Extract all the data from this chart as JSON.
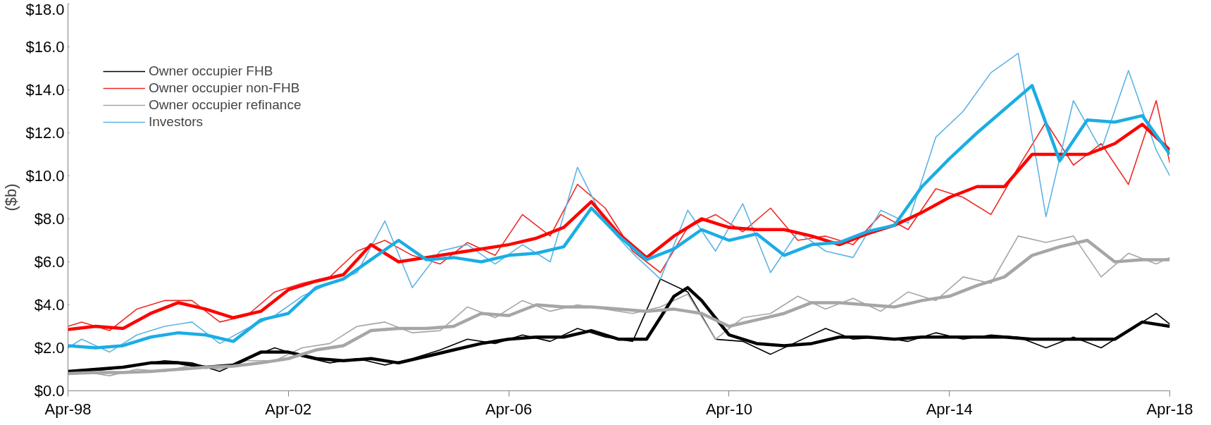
{
  "chart_data": {
    "type": "line",
    "ylabel": "($b)",
    "legend": "top left",
    "grid": false,
    "line_style": "solid",
    "marker": "none",
    "xlim": [
      "1998-04",
      "2018-04"
    ],
    "xticks": [
      {
        "value": "1998-04",
        "label": "Apr-98"
      },
      {
        "value": "2002-04",
        "label": "Apr-02"
      },
      {
        "value": "2006-04",
        "label": "Apr-06"
      },
      {
        "value": "2010-04",
        "label": "Apr-10"
      },
      {
        "value": "2014-04",
        "label": "Apr-14"
      },
      {
        "value": "2018-04",
        "label": "Apr-18"
      }
    ],
    "ylim": [
      0,
      18
    ],
    "yticks": [
      {
        "value": 0,
        "label": "$0.0"
      },
      {
        "value": 2,
        "label": "$2.0"
      },
      {
        "value": 4,
        "label": "$4.0"
      },
      {
        "value": 6,
        "label": "$6.0"
      },
      {
        "value": 8,
        "label": "$8.0"
      },
      {
        "value": 10,
        "label": "$10.0"
      },
      {
        "value": 12,
        "label": "$12.0"
      },
      {
        "value": 14,
        "label": "$14.0"
      },
      {
        "value": 16,
        "label": "$16.0"
      },
      {
        "value": 18,
        "label": "$18.0"
      }
    ],
    "x": [
      "1998-04",
      "1998-07",
      "1999-01",
      "1999-07",
      "2000-01",
      "2000-07",
      "2001-01",
      "2001-07",
      "2002-01",
      "2002-07",
      "2003-01",
      "2003-07",
      "2004-01",
      "2004-07",
      "2005-01",
      "2005-07",
      "2006-01",
      "2006-07",
      "2007-01",
      "2007-07",
      "2008-01",
      "2008-07",
      "2009-01",
      "2009-07",
      "2010-01",
      "2010-07",
      "2011-01",
      "2011-07",
      "2012-01",
      "2012-07",
      "2013-01",
      "2013-07",
      "2014-01",
      "2014-07",
      "2015-01",
      "2015-07",
      "2016-01",
      "2016-07",
      "2017-01",
      "2017-07",
      "2018-01",
      "2018-04"
    ],
    "series": [
      {
        "name": "Owner occupier FHB",
        "color": "#000000",
        "values": [
          0.9,
          0.9,
          1.0,
          1.2,
          1.4,
          1.3,
          0.9,
          1.5,
          2.0,
          1.6,
          1.3,
          1.5,
          1.2,
          1.5,
          1.9,
          2.4,
          2.2,
          2.6,
          2.3,
          2.9,
          2.5,
          2.3,
          5.2,
          4.6,
          2.4,
          2.3,
          1.7,
          2.3,
          2.9,
          2.4,
          2.5,
          2.3,
          2.7,
          2.4,
          2.6,
          2.5,
          2.0,
          2.5,
          2.0,
          2.8,
          3.6,
          3.1
        ]
      },
      {
        "name": "Owner occupier non-FHB",
        "color": "#ee2a24",
        "values": [
          3.0,
          3.2,
          2.8,
          3.8,
          4.2,
          4.2,
          3.2,
          3.5,
          4.6,
          5.0,
          5.3,
          6.5,
          7.0,
          6.3,
          5.9,
          6.9,
          6.3,
          8.2,
          7.2,
          9.6,
          8.5,
          6.5,
          5.5,
          7.6,
          8.2,
          7.4,
          8.5,
          7.0,
          7.2,
          6.8,
          8.2,
          7.5,
          9.4,
          9.0,
          8.2,
          10.4,
          12.5,
          10.5,
          11.5,
          9.6,
          13.5,
          10.6
        ]
      },
      {
        "name": "Owner occupier refinance",
        "color": "#a6a6a6",
        "values": [
          0.8,
          0.9,
          0.7,
          1.0,
          0.9,
          1.2,
          1.0,
          1.4,
          1.4,
          2.0,
          2.2,
          3.0,
          3.2,
          2.7,
          2.8,
          3.9,
          3.4,
          4.2,
          3.7,
          4.0,
          3.8,
          3.6,
          3.9,
          4.5,
          2.4,
          3.4,
          3.6,
          4.4,
          3.8,
          4.3,
          3.7,
          4.6,
          4.2,
          5.3,
          5.0,
          7.2,
          6.9,
          7.2,
          5.3,
          6.4,
          5.9,
          6.2
        ]
      },
      {
        "name": "Investors",
        "color": "#5eb3e6",
        "values": [
          2.0,
          2.4,
          1.8,
          2.6,
          3.0,
          3.2,
          2.2,
          2.9,
          3.5,
          4.4,
          5.0,
          5.5,
          7.9,
          4.8,
          6.5,
          6.8,
          5.9,
          6.8,
          6.0,
          10.4,
          7.8,
          6.4,
          5.2,
          8.4,
          6.5,
          8.7,
          5.5,
          7.4,
          6.5,
          6.2,
          8.4,
          7.8,
          11.8,
          13.0,
          14.8,
          15.7,
          8.1,
          13.5,
          11.2,
          14.9,
          11.2,
          10.0
        ]
      },
      {
        "color": "#000000",
        "x": [
          "1998-04",
          "1998-10",
          "1999-04",
          "1999-10",
          "2000-04",
          "2000-10",
          "2001-04",
          "2001-10",
          "2002-04",
          "2002-10",
          "2003-04",
          "2003-10",
          "2004-04",
          "2004-10",
          "2005-04",
          "2005-10",
          "2006-04",
          "2006-10",
          "2007-04",
          "2007-10",
          "2008-04",
          "2008-10",
          "2009-04",
          "2009-07",
          "2009-10",
          "2010-04",
          "2010-10",
          "2011-04",
          "2011-10",
          "2012-04",
          "2012-10",
          "2013-04",
          "2013-10",
          "2014-04",
          "2014-10",
          "2015-04",
          "2015-10",
          "2016-04",
          "2016-10",
          "2017-04",
          "2017-10",
          "2018-04"
        ],
        "values": [
          0.9,
          1.0,
          1.1,
          1.3,
          1.3,
          1.1,
          1.2,
          1.8,
          1.8,
          1.5,
          1.4,
          1.5,
          1.3,
          1.6,
          1.9,
          2.2,
          2.4,
          2.5,
          2.5,
          2.8,
          2.4,
          2.4,
          4.4,
          4.8,
          4.2,
          2.6,
          2.2,
          2.1,
          2.2,
          2.5,
          2.5,
          2.4,
          2.5,
          2.5,
          2.5,
          2.5,
          2.4,
          2.4,
          2.4,
          2.4,
          3.2,
          3.0
        ]
      },
      {
        "color": "#ff0000",
        "x": [
          "1998-04",
          "1998-10",
          "1999-04",
          "1999-10",
          "2000-04",
          "2000-10",
          "2001-04",
          "2001-10",
          "2002-04",
          "2002-10",
          "2003-04",
          "2003-10",
          "2004-04",
          "2004-10",
          "2005-04",
          "2005-10",
          "2006-04",
          "2006-10",
          "2007-04",
          "2007-10",
          "2008-04",
          "2008-10",
          "2009-04",
          "2009-10",
          "2010-04",
          "2010-10",
          "2011-04",
          "2011-10",
          "2012-04",
          "2012-10",
          "2013-04",
          "2013-10",
          "2014-04",
          "2014-10",
          "2015-04",
          "2015-10",
          "2016-04",
          "2016-10",
          "2017-04",
          "2017-10",
          "2018-04"
        ],
        "values": [
          2.85,
          3.0,
          2.9,
          3.6,
          4.1,
          3.8,
          3.4,
          3.7,
          4.7,
          5.1,
          5.4,
          6.8,
          6.0,
          6.2,
          6.4,
          6.6,
          6.8,
          7.1,
          7.6,
          8.8,
          7.3,
          6.2,
          7.2,
          8.0,
          7.6,
          7.5,
          7.5,
          7.2,
          6.8,
          7.3,
          7.7,
          8.3,
          9.0,
          9.5,
          9.5,
          11.0,
          11.0,
          11.0,
          11.5,
          12.4,
          11.2
        ]
      },
      {
        "color": "#a6a6a6",
        "x": [
          "1998-04",
          "1998-10",
          "1999-04",
          "1999-10",
          "2000-04",
          "2000-10",
          "2001-04",
          "2001-10",
          "2002-04",
          "2002-10",
          "2003-04",
          "2003-10",
          "2004-04",
          "2004-10",
          "2005-04",
          "2005-10",
          "2006-04",
          "2006-10",
          "2007-04",
          "2007-10",
          "2008-04",
          "2008-10",
          "2009-04",
          "2009-10",
          "2010-04",
          "2010-10",
          "2011-04",
          "2011-10",
          "2012-04",
          "2012-10",
          "2013-04",
          "2013-10",
          "2014-04",
          "2014-10",
          "2015-04",
          "2015-10",
          "2016-04",
          "2016-10",
          "2017-04",
          "2017-10",
          "2018-04"
        ],
        "values": [
          0.8,
          0.85,
          0.85,
          0.9,
          1.0,
          1.1,
          1.15,
          1.3,
          1.5,
          1.9,
          2.1,
          2.8,
          2.9,
          2.9,
          3.0,
          3.6,
          3.5,
          4.0,
          3.9,
          3.9,
          3.8,
          3.7,
          3.8,
          3.6,
          3.0,
          3.3,
          3.6,
          4.1,
          4.1,
          4.0,
          3.9,
          4.2,
          4.4,
          4.9,
          5.3,
          6.3,
          6.7,
          7.0,
          6.0,
          6.1,
          6.1
        ]
      },
      {
        "color": "#1cade4",
        "x": [
          "1998-04",
          "1998-10",
          "1999-04",
          "1999-10",
          "2000-04",
          "2000-10",
          "2001-04",
          "2001-10",
          "2002-04",
          "2002-10",
          "2003-04",
          "2003-10",
          "2004-04",
          "2004-10",
          "2005-04",
          "2005-10",
          "2006-04",
          "2006-10",
          "2007-04",
          "2007-10",
          "2008-04",
          "2008-10",
          "2009-04",
          "2009-10",
          "2010-04",
          "2010-10",
          "2011-04",
          "2011-10",
          "2012-04",
          "2012-10",
          "2013-04",
          "2013-10",
          "2014-04",
          "2014-10",
          "2015-04",
          "2015-10",
          "2016-04",
          "2016-10",
          "2017-04",
          "2017-10",
          "2018-04"
        ],
        "values": [
          2.1,
          2.0,
          2.1,
          2.5,
          2.7,
          2.6,
          2.3,
          3.3,
          3.6,
          4.8,
          5.2,
          6.1,
          7.0,
          6.1,
          6.2,
          6.0,
          6.3,
          6.4,
          6.7,
          8.5,
          7.2,
          6.1,
          6.6,
          7.5,
          7.0,
          7.3,
          6.3,
          6.8,
          6.9,
          7.4,
          7.7,
          9.5,
          10.8,
          12.0,
          13.1,
          14.2,
          10.7,
          12.6,
          12.5,
          12.8,
          11.0
        ]
      }
    ]
  }
}
